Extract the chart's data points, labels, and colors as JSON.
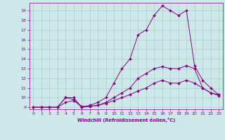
{
  "xlabel": "Windchill (Refroidissement éolien,°C)",
  "background_color": "#cce8e8",
  "grid_color": "#aacece",
  "line_color": "#880088",
  "xlim": [
    -0.5,
    23.5
  ],
  "ylim": [
    8.8,
    19.8
  ],
  "xticks": [
    0,
    1,
    2,
    3,
    4,
    5,
    6,
    7,
    8,
    9,
    10,
    11,
    12,
    13,
    14,
    15,
    16,
    17,
    18,
    19,
    20,
    21,
    22,
    23
  ],
  "yticks": [
    9,
    10,
    11,
    12,
    13,
    14,
    15,
    16,
    17,
    18,
    19
  ],
  "line1_x": [
    0,
    1,
    2,
    3,
    4,
    5,
    6,
    7,
    8,
    9,
    10,
    11,
    12,
    13,
    14,
    15,
    16,
    17,
    18,
    19,
    20,
    21,
    22,
    23
  ],
  "line1_y": [
    9,
    9,
    9,
    9,
    10,
    10,
    9,
    9.2,
    9.5,
    10,
    11.5,
    13,
    14,
    16.5,
    17,
    18.5,
    19.5,
    19,
    18.5,
    19,
    13.3,
    11.8,
    11,
    10.3
  ],
  "line2_x": [
    0,
    1,
    2,
    3,
    4,
    5,
    6,
    7,
    8,
    9,
    10,
    11,
    12,
    13,
    14,
    15,
    16,
    17,
    18,
    19,
    20,
    21,
    22,
    23
  ],
  "line2_y": [
    9,
    9,
    9,
    9,
    10,
    9.8,
    9,
    9.1,
    9.2,
    9.5,
    10,
    10.5,
    11,
    12,
    12.5,
    13,
    13.2,
    13,
    13,
    13.3,
    13,
    11,
    10.5,
    10.3
  ],
  "line3_x": [
    0,
    1,
    2,
    3,
    4,
    5,
    6,
    7,
    8,
    9,
    10,
    11,
    12,
    13,
    14,
    15,
    16,
    17,
    18,
    19,
    20,
    21,
    22,
    23
  ],
  "line3_y": [
    9,
    9,
    9,
    9,
    9.5,
    9.7,
    9.1,
    9.1,
    9.2,
    9.4,
    9.7,
    10,
    10.3,
    10.7,
    11,
    11.5,
    11.8,
    11.5,
    11.5,
    11.8,
    11.5,
    11,
    10.5,
    10.2
  ]
}
